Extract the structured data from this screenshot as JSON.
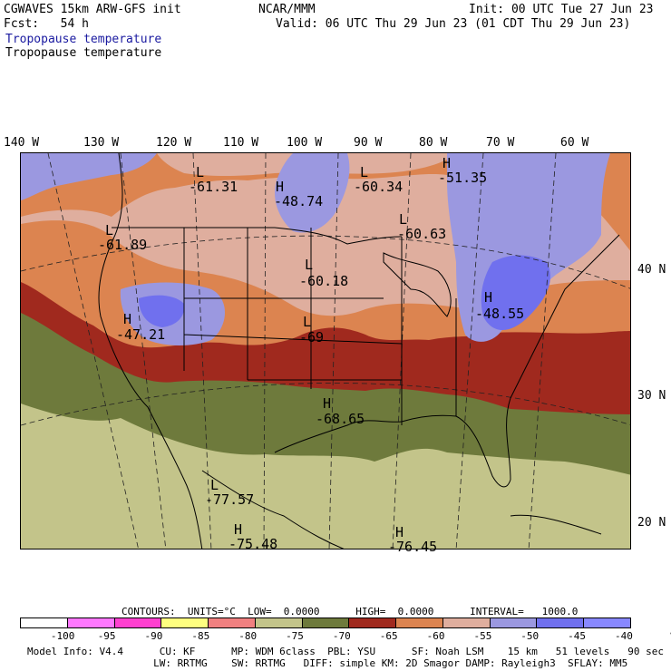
{
  "header": {
    "model_line": "CGWAVES 15km ARW-GFS init",
    "org": "NCAR/MMM",
    "init": "Init: 00 UTC Tue 27 Jun 23",
    "fcst": "Fcst:   54 h",
    "valid": "Valid: 06 UTC Thu 29 Jun 23 (01 CDT Thu 29 Jun 23)",
    "field_title_blue": "Tropopause temperature",
    "field_title_black": "Tropopause temperature"
  },
  "map": {
    "longitude_labels": [
      "140 W",
      "130 W",
      "120 W",
      "110 W",
      "100 W",
      "90 W",
      "80 W",
      "70 W",
      "60 W"
    ],
    "latitude_labels": [
      "40 N",
      "30 N",
      "20 N"
    ],
    "centers": [
      {
        "letter": "L",
        "value": "-61.31"
      },
      {
        "letter": "H",
        "value": "-48.74"
      },
      {
        "letter": "L",
        "value": "-60.34"
      },
      {
        "letter": "H",
        "value": "-51.35"
      },
      {
        "letter": "L",
        "value": "-61.89"
      },
      {
        "letter": "L",
        "value": "-60.63"
      },
      {
        "letter": "L",
        "value": "-60.18"
      },
      {
        "letter": "H",
        "value": "-48.55"
      },
      {
        "letter": "H",
        "value": "-47.21"
      },
      {
        "letter": "L",
        "value": "-69"
      },
      {
        "letter": "H",
        "value": "-68.65"
      },
      {
        "letter": "L",
        "value": "-77.57"
      },
      {
        "letter": "H",
        "value": "-75.48"
      },
      {
        "letter": "H",
        "value": "-76.45"
      }
    ],
    "colors": {
      "deep_olive": "#6e7a3c",
      "light_olive": "#c3c48a",
      "dark_red": "#a0291e",
      "orange": "#dc8450",
      "salmon": "#dfae9e",
      "lavender": "#9b98e0",
      "blue": "#7070ee"
    }
  },
  "legend": {
    "contours_line": "CONTOURS:  UNITS=°C  LOW=  0.0000      HIGH=  0.0000      INTERVAL=   1000.0",
    "colors": [
      "#ffffff",
      "#ff78ff",
      "#ff40d0",
      "#ffff80",
      "#f08080",
      "#c3c48a",
      "#6e7a3c",
      "#a0291e",
      "#dc8450",
      "#dfae9e",
      "#9b98e0",
      "#7070ee",
      "#8888ff"
    ],
    "ticks": [
      "-100",
      "-95",
      "-90",
      "-85",
      "-80",
      "-75",
      "-70",
      "-65",
      "-60",
      "-55",
      "-50",
      "-45",
      "-40",
      "°C"
    ]
  },
  "footer": {
    "line1": "Model Info: V4.4      CU: KF      MP: WDM 6class  PBL: YSU      SF: Noah LSM    15 km   51 levels   90 sec",
    "line2": "                     LW: RRTMG    SW: RRTMG   DIFF: simple KM: 2D Smagor DAMP: Rayleigh3  SFLAY: MM5"
  }
}
